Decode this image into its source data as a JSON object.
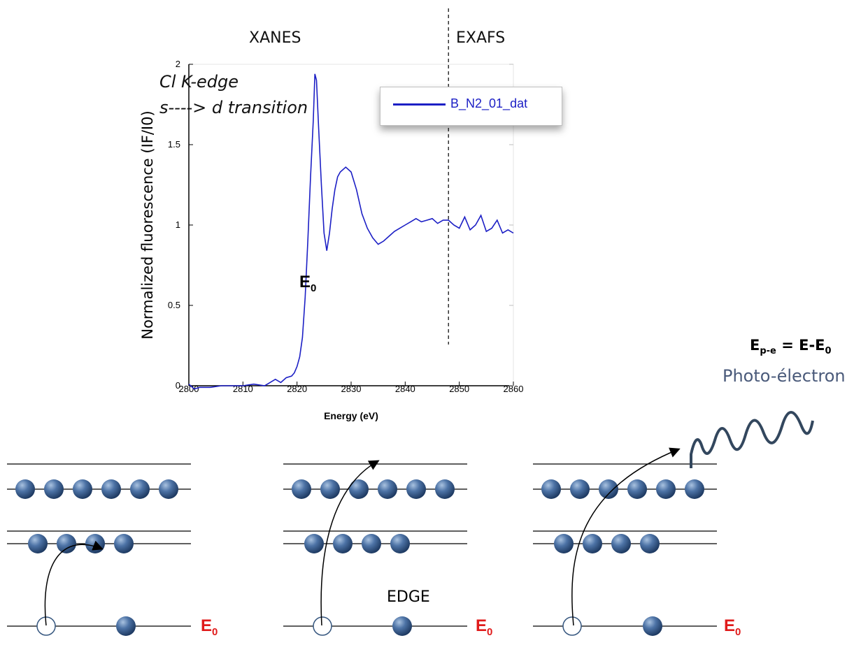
{
  "regions": {
    "xanes": "XANES",
    "exafs": "EXAFS"
  },
  "annotations": {
    "edge_name": "Cl K-edge",
    "transition": "s----> d transition",
    "e0_marker": "E",
    "e0_sub": "0",
    "epe_main": "E",
    "epe_sub": "p-e",
    "epe_eq": " = E-E",
    "epe_eq_sub": "0",
    "photoelectron": "Photo-électron",
    "edge_label": "EDGE",
    "level_e0": "E",
    "level_e0_sub": "0"
  },
  "colors": {
    "series": "#1c1fc5",
    "e0_label": "#e01b1b",
    "atom": "#3f6391",
    "photoelectron_text": "#4a5a7a"
  },
  "chart_data": {
    "type": "line",
    "xlabel": "Energy (eV)",
    "ylabel": "Normalized fluorescence (IF/I0)",
    "xlim": [
      2800,
      2860
    ],
    "ylim": [
      0,
      2
    ],
    "xticks": [
      2800,
      2810,
      2820,
      2830,
      2840,
      2850,
      2860
    ],
    "yticks": [
      0,
      0.5,
      1,
      1.5,
      2
    ],
    "ytick_labels": [
      "0",
      "0.5",
      "1",
      "1.5",
      "2"
    ],
    "legend": {
      "position": "top-right",
      "entries": [
        "B_N2_01_dat"
      ]
    },
    "grid": false,
    "vline_x": 2848,
    "series": [
      {
        "name": "B_N2_01_dat",
        "x": [
          2800,
          2801,
          2802,
          2804,
          2806,
          2808,
          2810,
          2812,
          2814,
          2815,
          2816,
          2817,
          2818,
          2819,
          2819.5,
          2820,
          2820.5,
          2821,
          2821.5,
          2822,
          2822.5,
          2823,
          2823.3,
          2823.6,
          2824,
          2824.5,
          2825,
          2825.5,
          2826,
          2826.5,
          2827,
          2827.5,
          2828,
          2829,
          2830,
          2831,
          2832,
          2833,
          2834,
          2835,
          2836,
          2837,
          2838,
          2839,
          2840,
          2841,
          2842,
          2843,
          2844,
          2845,
          2846,
          2847,
          2848,
          2849,
          2850,
          2851,
          2852,
          2853,
          2854,
          2855,
          2856,
          2857,
          2858,
          2859,
          2860
        ],
        "y": [
          0.01,
          -0.02,
          -0.01,
          -0.01,
          0.0,
          0.0,
          0.0,
          0.01,
          0.0,
          0.02,
          0.04,
          0.02,
          0.05,
          0.06,
          0.08,
          0.12,
          0.18,
          0.3,
          0.55,
          0.9,
          1.3,
          1.65,
          1.94,
          1.9,
          1.6,
          1.25,
          0.95,
          0.84,
          0.95,
          1.1,
          1.22,
          1.3,
          1.33,
          1.36,
          1.33,
          1.22,
          1.07,
          0.98,
          0.92,
          0.88,
          0.9,
          0.93,
          0.96,
          0.98,
          1.0,
          1.02,
          1.04,
          1.02,
          1.03,
          1.04,
          1.01,
          1.03,
          1.03,
          1.0,
          0.98,
          1.05,
          0.97,
          1.0,
          1.06,
          0.96,
          0.98,
          1.03,
          0.95,
          0.97,
          0.95
        ]
      }
    ]
  }
}
